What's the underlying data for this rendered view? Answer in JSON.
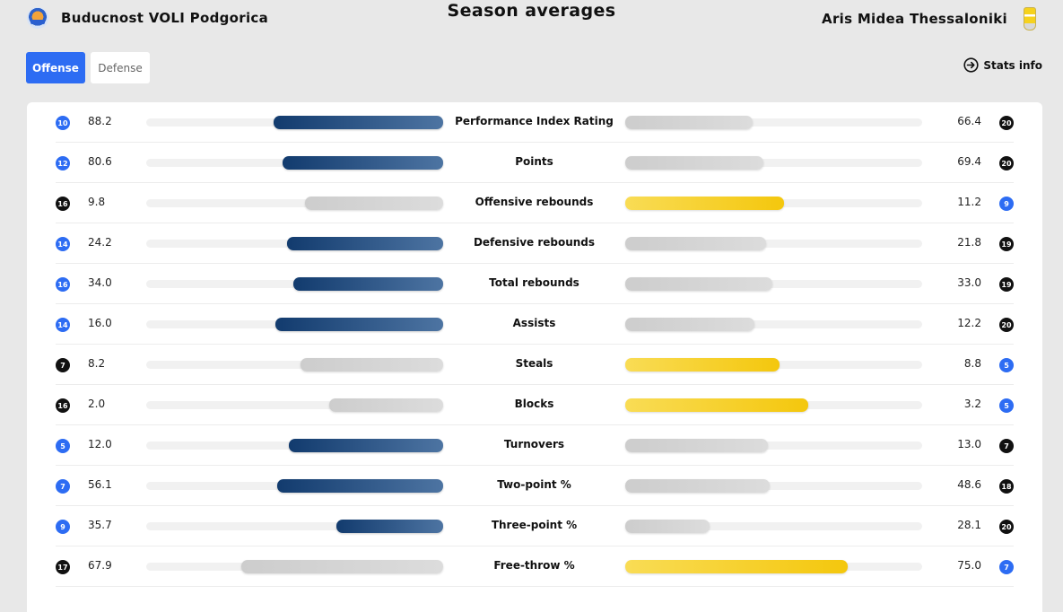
{
  "header": {
    "title": "Season averages",
    "home_team": "Buducnost VOLI Podgorica",
    "away_team": "Aris Midea Thessaloniki"
  },
  "tabs": [
    {
      "label": "Offense",
      "active": true
    },
    {
      "label": "Defense",
      "active": false
    }
  ],
  "stats_info": {
    "label": "Stats info",
    "icon": "arrow-circle-right-icon"
  },
  "colors": {
    "accent": "#2d6cf3",
    "home_leader_bar": "#1f4a80",
    "away_leader_bar": "#f6cd1f",
    "trailing_bar": "#d3d3d3",
    "rank_top": "#2d6cf3",
    "rank_other": "#111111"
  },
  "scale_max": 100,
  "stats": [
    {
      "label": "Performance Index Rating",
      "home": {
        "value": "88.2",
        "rank": "10",
        "rank_color": "blue"
      },
      "away": {
        "value": "66.4",
        "rank": "20",
        "rank_color": "black"
      },
      "home_fill": 0.57,
      "away_fill": 0.43,
      "leader": "home"
    },
    {
      "label": "Points",
      "home": {
        "value": "80.6",
        "rank": "12",
        "rank_color": "blue"
      },
      "away": {
        "value": "69.4",
        "rank": "20",
        "rank_color": "black"
      },
      "home_fill": 0.54,
      "away_fill": 0.465,
      "leader": "home"
    },
    {
      "label": "Offensive rebounds",
      "home": {
        "value": "9.8",
        "rank": "16",
        "rank_color": "black"
      },
      "away": {
        "value": "11.2",
        "rank": "9",
        "rank_color": "blue"
      },
      "home_fill": 0.465,
      "away_fill": 0.535,
      "leader": "away"
    },
    {
      "label": "Defensive rebounds",
      "home": {
        "value": "24.2",
        "rank": "14",
        "rank_color": "blue"
      },
      "away": {
        "value": "21.8",
        "rank": "19",
        "rank_color": "black"
      },
      "home_fill": 0.525,
      "away_fill": 0.475,
      "leader": "home"
    },
    {
      "label": "Total rebounds",
      "home": {
        "value": "34.0",
        "rank": "16",
        "rank_color": "blue"
      },
      "away": {
        "value": "33.0",
        "rank": "19",
        "rank_color": "black"
      },
      "home_fill": 0.505,
      "away_fill": 0.495,
      "leader": "home"
    },
    {
      "label": "Assists",
      "home": {
        "value": "16.0",
        "rank": "14",
        "rank_color": "blue"
      },
      "away": {
        "value": "12.2",
        "rank": "20",
        "rank_color": "black"
      },
      "home_fill": 0.565,
      "away_fill": 0.435,
      "leader": "home"
    },
    {
      "label": "Steals",
      "home": {
        "value": "8.2",
        "rank": "7",
        "rank_color": "black"
      },
      "away": {
        "value": "8.8",
        "rank": "5",
        "rank_color": "blue"
      },
      "home_fill": 0.48,
      "away_fill": 0.52,
      "leader": "away"
    },
    {
      "label": "Blocks",
      "home": {
        "value": "2.0",
        "rank": "16",
        "rank_color": "black"
      },
      "away": {
        "value": "3.2",
        "rank": "5",
        "rank_color": "blue"
      },
      "home_fill": 0.385,
      "away_fill": 0.615,
      "leader": "away"
    },
    {
      "label": "Turnovers",
      "home": {
        "value": "12.0",
        "rank": "5",
        "rank_color": "blue"
      },
      "away": {
        "value": "13.0",
        "rank": "7",
        "rank_color": "black"
      },
      "home_fill": 0.52,
      "away_fill": 0.48,
      "leader": "home"
    },
    {
      "label": "Two-point %",
      "home": {
        "value": "56.1",
        "rank": "7",
        "rank_color": "blue"
      },
      "away": {
        "value": "48.6",
        "rank": "18",
        "rank_color": "black"
      },
      "home_fill": 0.56,
      "away_fill": 0.485,
      "leader": "home"
    },
    {
      "label": "Three-point %",
      "home": {
        "value": "35.7",
        "rank": "9",
        "rank_color": "blue"
      },
      "away": {
        "value": "28.1",
        "rank": "20",
        "rank_color": "black"
      },
      "home_fill": 0.36,
      "away_fill": 0.285,
      "leader": "home"
    },
    {
      "label": "Free-throw %",
      "home": {
        "value": "67.9",
        "rank": "17",
        "rank_color": "black"
      },
      "away": {
        "value": "75.0",
        "rank": "7",
        "rank_color": "blue"
      },
      "home_fill": 0.68,
      "away_fill": 0.75,
      "leader": "away"
    }
  ]
}
